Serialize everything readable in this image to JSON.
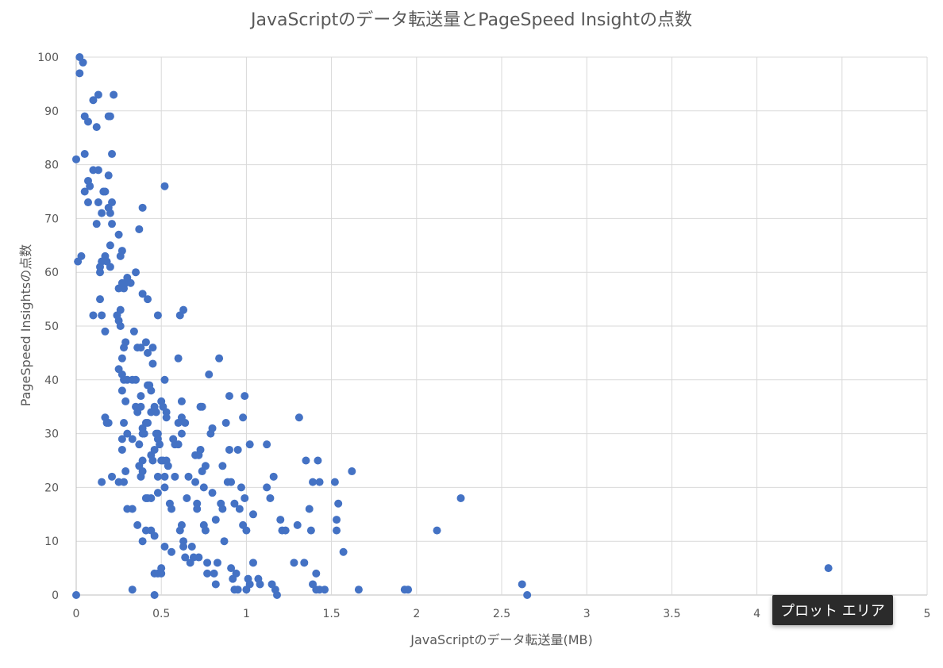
{
  "chart_data": {
    "type": "scatter",
    "title": "JavaScriptのデータ転送量とPageSpeed Insightの点数",
    "xlabel": "JavaScriptのデータ転送量(MB)",
    "ylabel": "PageSpeed Insightsの点数",
    "xlim": [
      0,
      5
    ],
    "ylim": [
      0,
      100
    ],
    "x_ticks": [
      0,
      0.5,
      1,
      1.5,
      2,
      2.5,
      3,
      3.5,
      4,
      4.5,
      5
    ],
    "x_tick_labels": [
      "0",
      "0.5",
      "1",
      "1.5",
      "2",
      "2.5",
      "3",
      "3.5",
      "4",
      "4.5",
      "5"
    ],
    "y_ticks": [
      0,
      10,
      20,
      30,
      40,
      50,
      60,
      70,
      80,
      90,
      100
    ],
    "y_tick_labels": [
      "0",
      "10",
      "20",
      "30",
      "40",
      "50",
      "60",
      "70",
      "80",
      "90",
      "100"
    ],
    "grid": true,
    "marker_color": "#4472c4",
    "points": [
      [
        0.02,
        100
      ],
      [
        0.04,
        99
      ],
      [
        0.02,
        97
      ],
      [
        0.0,
        81
      ],
      [
        0.01,
        62
      ],
      [
        0.03,
        63
      ],
      [
        0.05,
        89
      ],
      [
        0.07,
        88
      ],
      [
        0.05,
        82
      ],
      [
        0.05,
        75
      ],
      [
        0.07,
        73
      ],
      [
        0.07,
        77
      ],
      [
        0.08,
        76
      ],
      [
        0.1,
        79
      ],
      [
        0.1,
        92
      ],
      [
        0.12,
        87
      ],
      [
        0.12,
        69
      ],
      [
        0.13,
        93
      ],
      [
        0.13,
        79
      ],
      [
        0.13,
        73
      ],
      [
        0.14,
        60
      ],
      [
        0.14,
        61
      ],
      [
        0.14,
        55
      ],
      [
        0.15,
        71
      ],
      [
        0.15,
        62
      ],
      [
        0.16,
        75
      ],
      [
        0.17,
        75
      ],
      [
        0.17,
        63
      ],
      [
        0.18,
        62
      ],
      [
        0.19,
        89
      ],
      [
        0.2,
        89
      ],
      [
        0.19,
        78
      ],
      [
        0.21,
        73
      ],
      [
        0.19,
        72
      ],
      [
        0.2,
        71
      ],
      [
        0.21,
        82
      ],
      [
        0.21,
        69
      ],
      [
        0.22,
        93
      ],
      [
        0.2,
        65
      ],
      [
        0.2,
        61
      ],
      [
        0.1,
        52
      ],
      [
        0.15,
        52
      ],
      [
        0.17,
        49
      ],
      [
        0.15,
        21
      ],
      [
        0.17,
        33
      ],
      [
        0.18,
        32
      ],
      [
        0.19,
        32
      ],
      [
        0.21,
        22
      ],
      [
        0.25,
        67
      ],
      [
        0.26,
        63
      ],
      [
        0.27,
        64
      ],
      [
        0.28,
        57
      ],
      [
        0.27,
        58
      ],
      [
        0.29,
        58
      ],
      [
        0.25,
        57
      ],
      [
        0.24,
        52
      ],
      [
        0.25,
        51
      ],
      [
        0.26,
        50
      ],
      [
        0.26,
        53
      ],
      [
        0.25,
        42
      ],
      [
        0.27,
        44
      ],
      [
        0.27,
        41
      ],
      [
        0.28,
        46
      ],
      [
        0.29,
        47
      ],
      [
        0.3,
        59
      ],
      [
        0.32,
        58
      ],
      [
        0.35,
        60
      ],
      [
        0.37,
        68
      ],
      [
        0.39,
        72
      ],
      [
        0.39,
        56
      ],
      [
        0.42,
        55
      ],
      [
        0.28,
        40
      ],
      [
        0.3,
        40
      ],
      [
        0.33,
        40
      ],
      [
        0.35,
        40
      ],
      [
        0.34,
        49
      ],
      [
        0.36,
        46
      ],
      [
        0.38,
        46
      ],
      [
        0.41,
        47
      ],
      [
        0.42,
        45
      ],
      [
        0.45,
        46
      ],
      [
        0.45,
        43
      ],
      [
        0.48,
        52
      ],
      [
        0.27,
        38
      ],
      [
        0.28,
        32
      ],
      [
        0.29,
        36
      ],
      [
        0.27,
        29
      ],
      [
        0.27,
        27
      ],
      [
        0.25,
        21
      ],
      [
        0.28,
        21
      ],
      [
        0.29,
        23
      ],
      [
        0.3,
        30
      ],
      [
        0.3,
        16
      ],
      [
        0.33,
        16
      ],
      [
        0.33,
        29
      ],
      [
        0.35,
        35
      ],
      [
        0.36,
        34
      ],
      [
        0.38,
        35
      ],
      [
        0.38,
        37
      ],
      [
        0.39,
        31
      ],
      [
        0.39,
        30
      ],
      [
        0.4,
        30
      ],
      [
        0.41,
        32
      ],
      [
        0.42,
        32
      ],
      [
        0.42,
        39
      ],
      [
        0.43,
        39
      ],
      [
        0.44,
        38
      ],
      [
        0.44,
        34
      ],
      [
        0.46,
        35
      ],
      [
        0.47,
        34
      ],
      [
        0.37,
        28
      ],
      [
        0.37,
        24
      ],
      [
        0.38,
        22
      ],
      [
        0.39,
        23
      ],
      [
        0.39,
        25
      ],
      [
        0.41,
        18
      ],
      [
        0.42,
        18
      ],
      [
        0.44,
        26
      ],
      [
        0.44,
        18
      ],
      [
        0.45,
        25
      ],
      [
        0.46,
        27
      ],
      [
        0.47,
        30
      ],
      [
        0.48,
        30
      ],
      [
        0.48,
        29
      ],
      [
        0.49,
        28
      ],
      [
        0.5,
        36
      ],
      [
        0.51,
        35
      ],
      [
        0.52,
        40
      ],
      [
        0.53,
        34
      ],
      [
        0.53,
        33
      ],
      [
        0.36,
        13
      ],
      [
        0.39,
        10
      ],
      [
        0.41,
        12
      ],
      [
        0.44,
        12
      ],
      [
        0.46,
        11
      ],
      [
        0.48,
        19
      ],
      [
        0.48,
        22
      ],
      [
        0.5,
        25
      ],
      [
        0.51,
        25
      ],
      [
        0.52,
        22
      ],
      [
        0.52,
        20
      ],
      [
        0.53,
        25
      ],
      [
        0.54,
        24
      ],
      [
        0.55,
        17
      ],
      [
        0.56,
        16
      ],
      [
        0.57,
        29
      ],
      [
        0.58,
        28
      ],
      [
        0.6,
        32
      ],
      [
        0.62,
        33
      ],
      [
        0.62,
        36
      ],
      [
        0.64,
        32
      ],
      [
        0.62,
        30
      ],
      [
        0.6,
        44
      ],
      [
        0.61,
        52
      ],
      [
        0.63,
        53
      ],
      [
        0.52,
        76
      ],
      [
        0.46,
        4
      ],
      [
        0.48,
        4
      ],
      [
        0.5,
        5
      ],
      [
        0.5,
        4
      ],
      [
        0.46,
        0
      ],
      [
        0.33,
        1
      ],
      [
        0.52,
        9
      ],
      [
        0.56,
        8
      ],
      [
        0.58,
        22
      ],
      [
        0.6,
        28
      ],
      [
        0.61,
        12
      ],
      [
        0.62,
        13
      ],
      [
        0.63,
        10
      ],
      [
        0.63,
        9
      ],
      [
        0.64,
        7
      ],
      [
        0.65,
        18
      ],
      [
        0.66,
        22
      ],
      [
        0.67,
        6
      ],
      [
        0.68,
        9
      ],
      [
        0.69,
        7
      ],
      [
        0.7,
        26
      ],
      [
        0.7,
        21
      ],
      [
        0.71,
        17
      ],
      [
        0.71,
        16
      ],
      [
        0.72,
        26
      ],
      [
        0.72,
        7
      ],
      [
        0.73,
        35
      ],
      [
        0.73,
        27
      ],
      [
        0.74,
        35
      ],
      [
        0.74,
        23
      ],
      [
        0.75,
        20
      ],
      [
        0.76,
        24
      ],
      [
        0.75,
        13
      ],
      [
        0.76,
        12
      ],
      [
        0.77,
        6
      ],
      [
        0.77,
        4
      ],
      [
        0.78,
        41
      ],
      [
        0.79,
        30
      ],
      [
        0.8,
        31
      ],
      [
        0.8,
        19
      ],
      [
        0.81,
        4
      ],
      [
        0.82,
        2
      ],
      [
        0.82,
        14
      ],
      [
        0.83,
        6
      ],
      [
        0.84,
        44
      ],
      [
        0.85,
        17
      ],
      [
        0.86,
        16
      ],
      [
        0.86,
        24
      ],
      [
        0.87,
        10
      ],
      [
        0.88,
        32
      ],
      [
        0.89,
        21
      ],
      [
        0.9,
        37
      ],
      [
        0.9,
        27
      ],
      [
        0.91,
        5
      ],
      [
        0.91,
        21
      ],
      [
        0.92,
        3
      ],
      [
        0.93,
        17
      ],
      [
        0.93,
        1
      ],
      [
        0.94,
        4
      ],
      [
        0.95,
        27
      ],
      [
        0.95,
        1
      ],
      [
        0.96,
        16
      ],
      [
        0.97,
        20
      ],
      [
        0.98,
        33
      ],
      [
        0.98,
        13
      ],
      [
        0.99,
        37
      ],
      [
        0.99,
        18
      ],
      [
        1.0,
        12
      ],
      [
        1.0,
        1
      ],
      [
        1.01,
        3
      ],
      [
        1.02,
        28
      ],
      [
        1.02,
        2
      ],
      [
        1.04,
        15
      ],
      [
        1.04,
        6
      ],
      [
        1.07,
        3
      ],
      [
        1.08,
        2
      ],
      [
        1.12,
        28
      ],
      [
        1.12,
        20
      ],
      [
        1.14,
        18
      ],
      [
        1.15,
        2
      ],
      [
        1.16,
        22
      ],
      [
        1.17,
        1
      ],
      [
        1.18,
        0
      ],
      [
        1.2,
        14
      ],
      [
        1.21,
        12
      ],
      [
        1.23,
        12
      ],
      [
        1.28,
        6
      ],
      [
        1.3,
        13
      ],
      [
        1.31,
        33
      ],
      [
        1.34,
        6
      ],
      [
        1.35,
        25
      ],
      [
        1.37,
        16
      ],
      [
        1.38,
        12
      ],
      [
        1.39,
        21
      ],
      [
        1.39,
        2
      ],
      [
        1.41,
        4
      ],
      [
        1.41,
        1
      ],
      [
        1.42,
        25
      ],
      [
        1.43,
        21
      ],
      [
        1.43,
        1
      ],
      [
        1.46,
        1
      ],
      [
        1.52,
        21
      ],
      [
        1.53,
        14
      ],
      [
        1.53,
        12
      ],
      [
        1.54,
        17
      ],
      [
        1.57,
        8
      ],
      [
        1.62,
        23
      ],
      [
        1.66,
        1
      ],
      [
        1.93,
        1
      ],
      [
        1.95,
        1
      ],
      [
        2.12,
        12
      ],
      [
        2.26,
        18
      ],
      [
        2.62,
        2
      ],
      [
        2.65,
        0
      ],
      [
        4.42,
        5
      ],
      [
        0.0,
        0
      ]
    ]
  },
  "tooltip": {
    "label": "プロット エリア"
  }
}
